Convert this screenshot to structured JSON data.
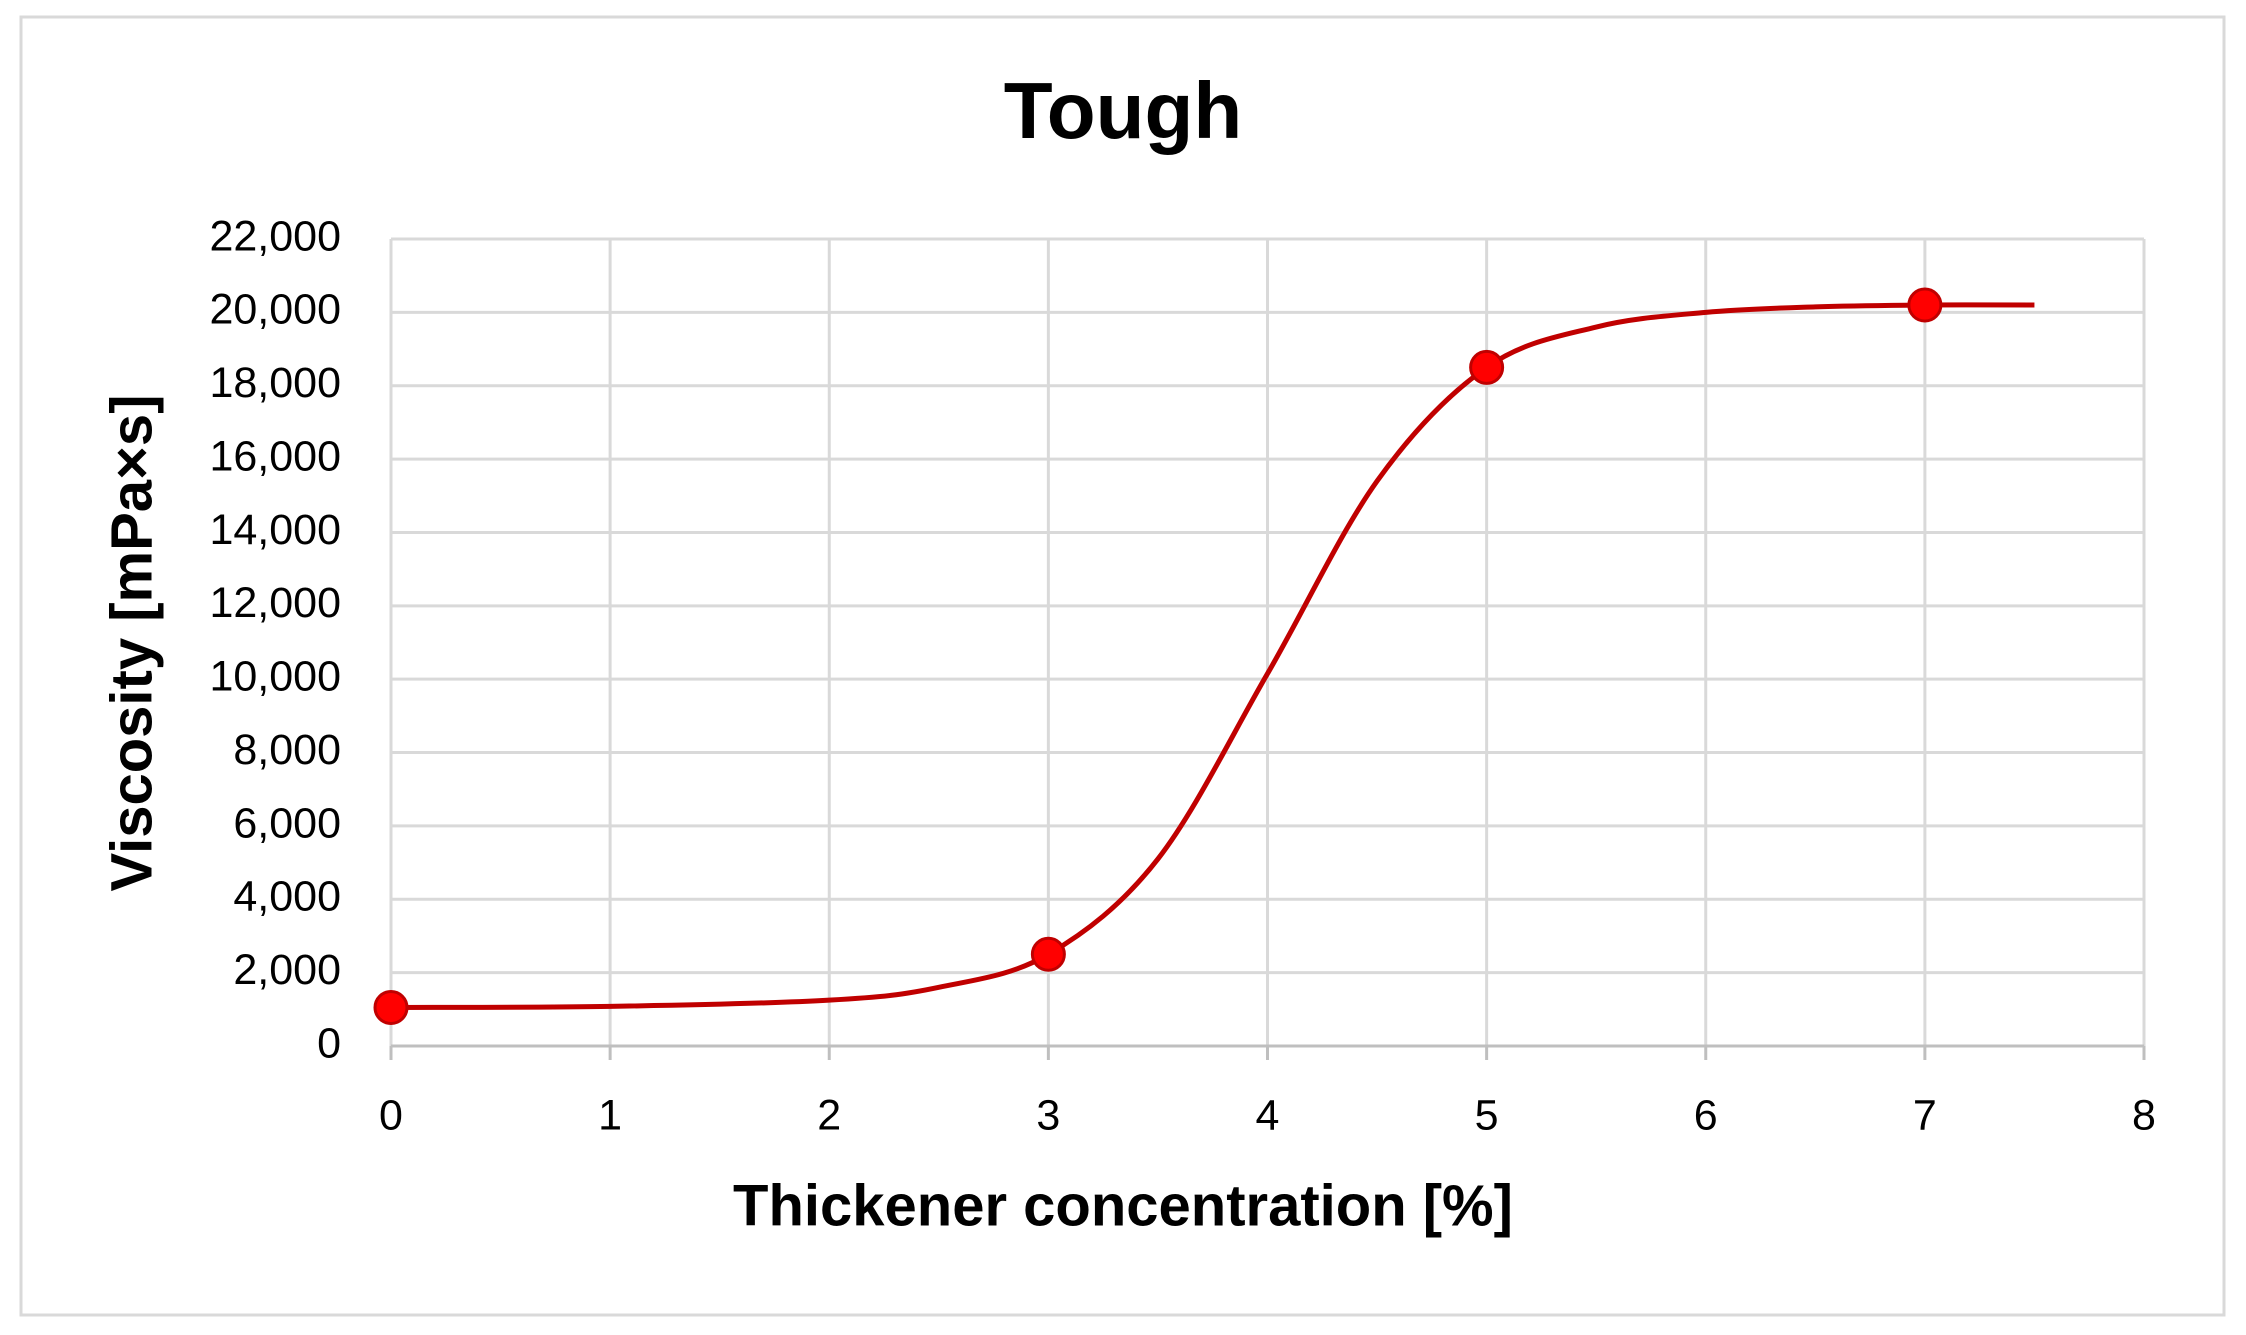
{
  "chart_data": {
    "type": "line",
    "title": "Tough",
    "x_label": "Thickener concentration [%]",
    "y_label": "Viscosity [mPa×s]",
    "series": [
      {
        "mode": "line",
        "color": "#c00000",
        "x": [
          0,
          1,
          2,
          2.5,
          3,
          3.5,
          4,
          4.5,
          5,
          5.5,
          6,
          6.5,
          7,
          7.5
        ],
        "values": [
          1050,
          1080,
          1250,
          1600,
          2500,
          5100,
          10150,
          15400,
          18500,
          19600,
          20000,
          20150,
          20200,
          20200
        ]
      },
      {
        "mode": "markers",
        "color": "#ff0000",
        "x": [
          0,
          3,
          5,
          7
        ],
        "values": [
          1050,
          2500,
          18500,
          20200
        ]
      }
    ],
    "xlim": [
      0,
      8
    ],
    "xticks": [
      0,
      1,
      2,
      3,
      4,
      5,
      6,
      7,
      8
    ],
    "ylim": [
      0,
      22000
    ],
    "yticks": [
      0,
      {
        "value": 2000,
        "label": "2,000"
      },
      {
        "value": 4000,
        "label": "4,000"
      },
      {
        "value": 6000,
        "label": "6,000"
      },
      {
        "value": 8000,
        "label": "8,000"
      },
      {
        "value": 10000,
        "label": "10,000"
      },
      {
        "value": 12000,
        "label": "12,000"
      },
      {
        "value": 14000,
        "label": "14,000"
      },
      {
        "value": 16000,
        "label": "16,000"
      },
      {
        "value": 18000,
        "label": "18,000"
      },
      {
        "value": 20000,
        "label": "20,000"
      },
      {
        "value": 22000,
        "label": "22,000"
      }
    ],
    "grid": true
  }
}
